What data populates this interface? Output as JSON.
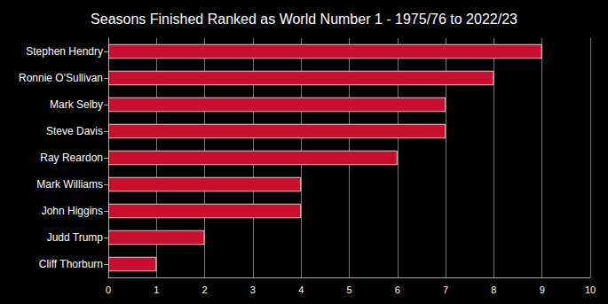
{
  "chart_data": {
    "type": "bar",
    "title": "Seasons Finished Ranked as World Number 1 - 1975/76 to 2022/23",
    "orientation": "horizontal",
    "categories": [
      "Stephen Hendry",
      "Ronnie O'Sullivan",
      "Mark Selby",
      "Steve Davis",
      "Ray Reardon",
      "Mark Williams",
      "John Higgins",
      "Judd Trump",
      "Cliff Thorburn"
    ],
    "values": [
      9,
      8,
      7,
      7,
      6,
      4,
      4,
      2,
      1
    ],
    "color": "#c8102e",
    "xlim": [
      0,
      10
    ],
    "xticks": [
      0,
      1,
      2,
      3,
      4,
      5,
      6,
      7,
      8,
      9,
      10
    ],
    "grid": true
  }
}
